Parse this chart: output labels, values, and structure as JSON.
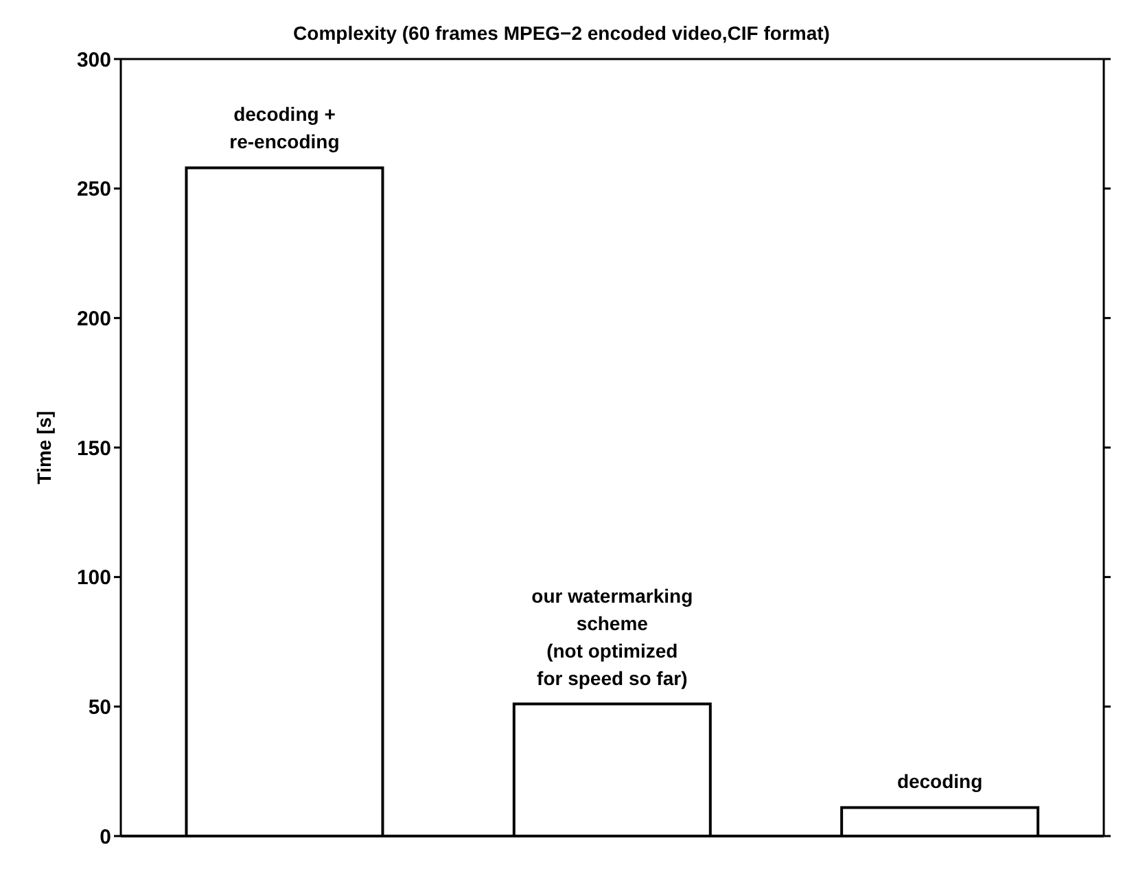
{
  "chart_data": {
    "type": "bar",
    "title": "Complexity (60 frames MPEG−2 encoded video,CIF format)",
    "ylabel": "Time [s]",
    "categories": [
      "decoding +\nre-encoding",
      "our watermarking\nscheme\n(not optimized\nfor speed so far)",
      "decoding"
    ],
    "values": [
      258,
      51,
      11
    ],
    "color": "#ffffff",
    "ylim": [
      0,
      300
    ],
    "yticks": [
      0,
      50,
      100,
      150,
      200,
      250,
      300
    ],
    "grid": false,
    "legend": false
  }
}
